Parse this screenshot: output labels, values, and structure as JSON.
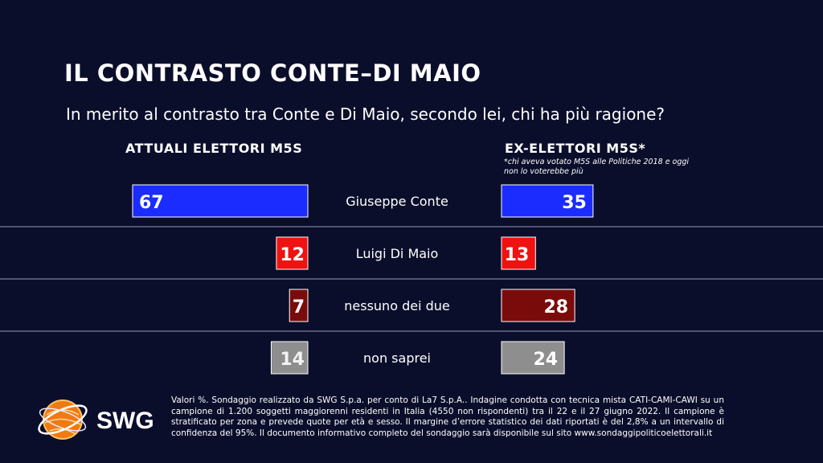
{
  "title": "IL CONTRASTO CONTE–DI MAIO",
  "question": "In merito al contrasto tra Conte e Di Maio, secondo lei, chi ha più ragione?",
  "columns": {
    "left": "ATTUALI ELETTORI M5S",
    "right": "EX-ELETTORI M5S*",
    "right_note": "*chi aveva votato M5S alle Politiche 2018 e oggi non lo voterebbe più"
  },
  "chart_data": {
    "type": "bar",
    "title": "IL CONTRASTO CONTE–DI MAIO",
    "categories": [
      "Giuseppe Conte",
      "Luigi Di Maio",
      "nessuno dei due",
      "non saprei"
    ],
    "series": [
      {
        "name": "ATTUALI ELETTORI M5S",
        "values": [
          67,
          12,
          7,
          14
        ]
      },
      {
        "name": "EX-ELETTORI M5S*",
        "values": [
          35,
          13,
          28,
          24
        ]
      }
    ],
    "colors": [
      "#1a2cff",
      "#f01111",
      "#7a0b0b",
      "#8e8e8e"
    ],
    "unit": "%"
  },
  "logo": {
    "text": "SWG",
    "icon": "globe-icon"
  },
  "footer": "Valori %. Sondaggio realizzato da SWG S.p.a. per conto di La7 S.p.A.. Indagine condotta con tecnica mista CATI-CAMI-CAWI su un campione di 1.200 soggetti maggiorenni residenti in Italia (4550 non rispondenti) tra il 22 e il 27 giugno 2022. Il campione è stratificato per zona e prevede quote per età e sesso. Il margine d’errore statistico dei dati riportati è del 2,8% a un intervallo di confidenza del 95%. Il documento informativo completo del sondaggio sarà disponibile sul sito www.sondaggipoliticoelettorali.it"
}
